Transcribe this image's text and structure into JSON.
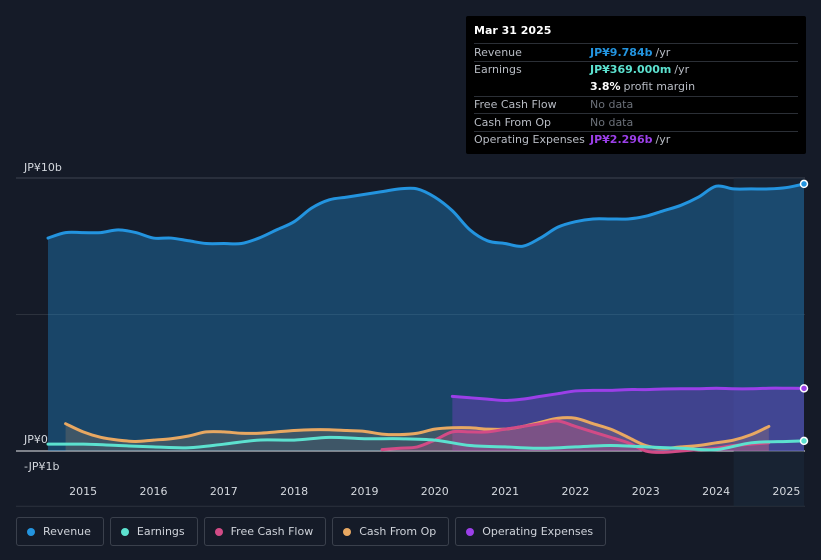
{
  "chart_data": {
    "type": "area",
    "currency_labels": {
      "top": "JP¥10b",
      "zero": "JP¥0",
      "bottom": "-JP¥1b"
    },
    "ylim": [
      -1,
      10
    ],
    "xlim": [
      2014.5,
      2025.25
    ],
    "x_ticks": [
      "2015",
      "2016",
      "2017",
      "2018",
      "2019",
      "2020",
      "2021",
      "2022",
      "2023",
      "2024",
      "2025"
    ],
    "x_tick_values": [
      2015,
      2016,
      2017,
      2018,
      2019,
      2020,
      2021,
      2022,
      2023,
      2024,
      2025
    ],
    "forecast_start": 2024.25,
    "series": [
      {
        "name": "Revenue",
        "color": "#2394df",
        "fill": true,
        "x": [
          2014.5,
          2014.75,
          2015.0,
          2015.25,
          2015.5,
          2015.75,
          2016.0,
          2016.25,
          2016.5,
          2016.75,
          2017.0,
          2017.25,
          2017.5,
          2017.75,
          2018.0,
          2018.25,
          2018.5,
          2018.75,
          2019.0,
          2019.25,
          2019.5,
          2019.75,
          2020.0,
          2020.25,
          2020.5,
          2020.75,
          2021.0,
          2021.25,
          2021.5,
          2021.75,
          2022.0,
          2022.25,
          2022.5,
          2022.75,
          2023.0,
          2023.25,
          2023.5,
          2023.75,
          2024.0,
          2024.25,
          2024.5,
          2024.75,
          2025.0,
          2025.25
        ],
        "values": [
          7.8,
          8.0,
          8.0,
          8.0,
          8.1,
          8.0,
          7.8,
          7.8,
          7.7,
          7.6,
          7.6,
          7.6,
          7.8,
          8.1,
          8.4,
          8.9,
          9.2,
          9.3,
          9.4,
          9.5,
          9.6,
          9.6,
          9.3,
          8.8,
          8.1,
          7.7,
          7.6,
          7.5,
          7.8,
          8.2,
          8.4,
          8.5,
          8.5,
          8.5,
          8.6,
          8.8,
          9.0,
          9.3,
          9.7,
          9.6,
          9.6,
          9.6,
          9.65,
          9.784
        ]
      },
      {
        "name": "Earnings",
        "color": "#5ce1cf",
        "fill": false,
        "x": [
          2014.5,
          2015.0,
          2015.5,
          2016.0,
          2016.5,
          2017.0,
          2017.5,
          2018.0,
          2018.5,
          2019.0,
          2019.5,
          2020.0,
          2020.5,
          2021.0,
          2021.5,
          2022.0,
          2022.5,
          2023.0,
          2023.5,
          2024.0,
          2024.5,
          2025.0,
          2025.25
        ],
        "values": [
          0.25,
          0.25,
          0.2,
          0.15,
          0.12,
          0.25,
          0.4,
          0.4,
          0.5,
          0.45,
          0.45,
          0.4,
          0.2,
          0.15,
          0.1,
          0.15,
          0.2,
          0.15,
          0.1,
          0.05,
          0.3,
          0.35,
          0.369
        ]
      },
      {
        "name": "Free Cash Flow",
        "color": "#d24b86",
        "fill": true,
        "x": [
          2019.25,
          2019.5,
          2019.75,
          2020.0,
          2020.25,
          2020.5,
          2020.75,
          2021.0,
          2021.25,
          2021.5,
          2021.75,
          2022.0,
          2022.25,
          2022.5,
          2022.75,
          2023.0,
          2023.25,
          2023.5,
          2023.75,
          2024.0,
          2024.25,
          2024.5,
          2024.75
        ],
        "values": [
          0.05,
          0.1,
          0.15,
          0.4,
          0.7,
          0.7,
          0.7,
          0.8,
          0.9,
          1.0,
          1.1,
          0.9,
          0.7,
          0.5,
          0.3,
          0.0,
          -0.05,
          0.0,
          0.05,
          0.1,
          0.2,
          0.25,
          0.3
        ]
      },
      {
        "name": "Cash From Op",
        "color": "#e8a862",
        "fill": true,
        "x": [
          2014.75,
          2015.0,
          2015.25,
          2015.5,
          2015.75,
          2016.0,
          2016.25,
          2016.5,
          2016.75,
          2017.0,
          2017.25,
          2017.5,
          2017.75,
          2018.0,
          2018.25,
          2018.5,
          2018.75,
          2019.0,
          2019.25,
          2019.5,
          2019.75,
          2020.0,
          2020.25,
          2020.5,
          2020.75,
          2021.0,
          2021.25,
          2021.5,
          2021.75,
          2022.0,
          2022.25,
          2022.5,
          2022.75,
          2023.0,
          2023.25,
          2023.5,
          2023.75,
          2024.0,
          2024.25,
          2024.5,
          2024.75
        ],
        "values": [
          1.0,
          0.7,
          0.5,
          0.4,
          0.35,
          0.4,
          0.45,
          0.55,
          0.7,
          0.7,
          0.65,
          0.65,
          0.7,
          0.75,
          0.78,
          0.78,
          0.75,
          0.72,
          0.62,
          0.6,
          0.65,
          0.8,
          0.85,
          0.85,
          0.8,
          0.8,
          0.9,
          1.05,
          1.2,
          1.2,
          1.0,
          0.8,
          0.5,
          0.2,
          0.1,
          0.15,
          0.2,
          0.3,
          0.4,
          0.6,
          0.9
        ]
      },
      {
        "name": "Operating Expenses",
        "color": "#9b3fe8",
        "fill": true,
        "x": [
          2020.25,
          2020.5,
          2020.75,
          2021.0,
          2021.25,
          2021.5,
          2021.75,
          2022.0,
          2022.25,
          2022.5,
          2022.75,
          2023.0,
          2023.25,
          2023.5,
          2023.75,
          2024.0,
          2024.25,
          2024.5,
          2024.75,
          2025.0,
          2025.25
        ],
        "values": [
          2.0,
          1.95,
          1.9,
          1.85,
          1.9,
          2.0,
          2.1,
          2.2,
          2.22,
          2.22,
          2.25,
          2.25,
          2.27,
          2.28,
          2.28,
          2.3,
          2.28,
          2.28,
          2.3,
          2.3,
          2.296
        ]
      }
    ]
  },
  "tooltip": {
    "date": "Mar 31 2025",
    "rows": [
      {
        "label": "Revenue",
        "value": "JP¥9.784b",
        "unit": "/yr",
        "color": "#2394df"
      },
      {
        "label": "Earnings",
        "value": "JP¥369.000m",
        "unit": "/yr",
        "color": "#5ce1cf"
      },
      {
        "label": "",
        "value": "3.8%",
        "unit": "profit margin",
        "color": "#ffffff"
      },
      {
        "label": "Free Cash Flow",
        "value": "No data",
        "unit": "",
        "color": "#6b7079"
      },
      {
        "label": "Cash From Op",
        "value": "No data",
        "unit": "",
        "color": "#6b7079"
      },
      {
        "label": "Operating Expenses",
        "value": "JP¥2.296b",
        "unit": "/yr",
        "color": "#9b3fe8"
      }
    ]
  },
  "legend": [
    {
      "label": "Revenue",
      "color": "#2394df"
    },
    {
      "label": "Earnings",
      "color": "#5ce1cf"
    },
    {
      "label": "Free Cash Flow",
      "color": "#d24b86"
    },
    {
      "label": "Cash From Op",
      "color": "#e8a862"
    },
    {
      "label": "Operating Expenses",
      "color": "#9b3fe8"
    }
  ]
}
